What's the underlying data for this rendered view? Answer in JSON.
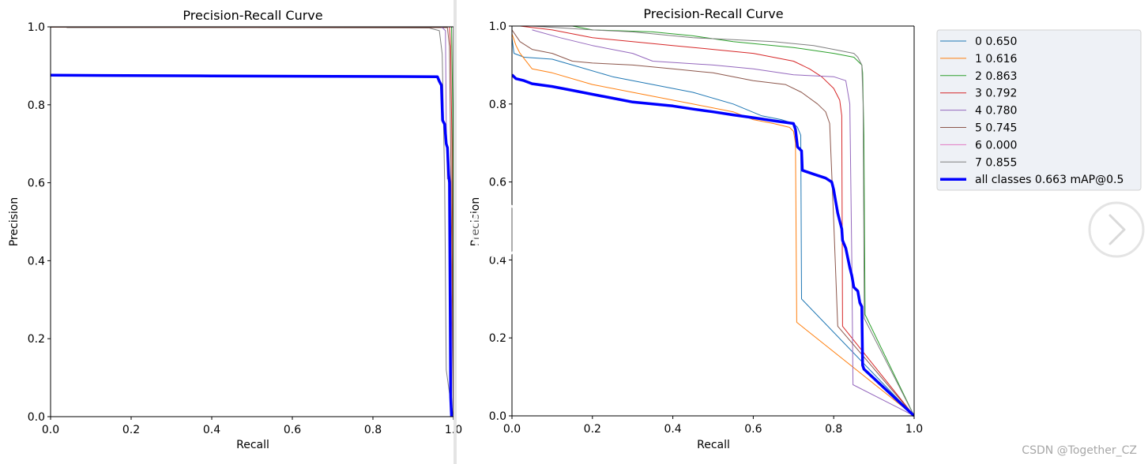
{
  "viewer": {
    "watermark": "CSDN @Together_CZ",
    "prev_label": "previous image",
    "next_label": "next image",
    "prev_icon": "chevron-left-icon",
    "next_icon": "chevron-right-icon"
  },
  "colors": {
    "c0": "#1f77b4",
    "c1": "#ff7f0e",
    "c2": "#2ca02c",
    "c3": "#d62728",
    "c4": "#9467bd",
    "c5": "#8c564b",
    "c6": "#e377c2",
    "c7": "#7f7f7f",
    "all": "#0000ff",
    "background": "#ffffff",
    "legend_bg": "#eef1f6"
  },
  "chart_data": [
    {
      "type": "line",
      "title": "Precision-Recall Curve",
      "xlabel": "Recall",
      "ylabel": "Precision",
      "xlim": [
        0,
        1
      ],
      "ylim": [
        0,
        1
      ],
      "xticks": [
        "0.0",
        "0.2",
        "0.4",
        "0.6",
        "0.8",
        "1.0"
      ],
      "yticks": [
        "0.0",
        "0.2",
        "0.4",
        "0.6",
        "0.8",
        "1.0"
      ],
      "visible_xmax": 1.01,
      "series": [
        {
          "name": "7",
          "color": "#7f7f7f",
          "width": 1,
          "points": [
            [
              0.04,
              0.998
            ],
            [
              0.5,
              0.998
            ],
            [
              0.94,
              0.997
            ],
            [
              0.965,
              0.99
            ],
            [
              0.972,
              0.93
            ],
            [
              0.978,
              0.6
            ],
            [
              0.982,
              0.12
            ],
            [
              0.99,
              0.06
            ],
            [
              1.0,
              0.0
            ]
          ]
        },
        {
          "name": "5",
          "color": "#8c564b",
          "width": 1,
          "points": [
            [
              0.0,
              0.999
            ],
            [
              0.985,
              0.998
            ],
            [
              0.99,
              0.95
            ],
            [
              0.994,
              0.6
            ],
            [
              0.998,
              0.2
            ],
            [
              1.0,
              0.0
            ]
          ]
        },
        {
          "name": "4",
          "color": "#9467bd",
          "width": 1,
          "points": [
            [
              0.0,
              1.0
            ],
            [
              0.97,
              1.0
            ],
            [
              0.98,
              0.99
            ],
            [
              0.982,
              0.75
            ],
            [
              0.985,
              0.61
            ],
            [
              0.99,
              0.61
            ],
            [
              1.0,
              0.0
            ]
          ]
        },
        {
          "name": "3",
          "color": "#d62728",
          "width": 1,
          "points": [
            [
              0.0,
              1.0
            ],
            [
              0.99,
              1.0
            ],
            [
              0.993,
              0.95
            ],
            [
              0.996,
              0.7
            ],
            [
              1.0,
              0.0
            ]
          ]
        },
        {
          "name": "2",
          "color": "#2ca02c",
          "width": 1,
          "points": [
            [
              0.0,
              1.0
            ],
            [
              0.995,
              1.0
            ],
            [
              0.998,
              0.8
            ],
            [
              1.0,
              0.0
            ]
          ]
        },
        {
          "name": "all classes",
          "color": "#0000ff",
          "width": 3.5,
          "points": [
            [
              0.0,
              0.876
            ],
            [
              0.4,
              0.874
            ],
            [
              0.96,
              0.872
            ],
            [
              0.965,
              0.86
            ],
            [
              0.97,
              0.85
            ],
            [
              0.973,
              0.76
            ],
            [
              0.978,
              0.75
            ],
            [
              0.982,
              0.7
            ],
            [
              0.985,
              0.69
            ],
            [
              0.988,
              0.62
            ],
            [
              0.99,
              0.6
            ],
            [
              0.993,
              0.05
            ],
            [
              0.995,
              0.0
            ]
          ]
        }
      ]
    },
    {
      "type": "line",
      "title": "Precision-Recall Curve",
      "xlabel": "Recall",
      "ylabel": "Precision",
      "xlim": [
        0,
        1
      ],
      "ylim": [
        0,
        1
      ],
      "xticks": [
        "0.0",
        "0.2",
        "0.4",
        "0.6",
        "0.8",
        "1.0"
      ],
      "yticks": [
        "0.0",
        "0.2",
        "0.4",
        "0.6",
        "0.8",
        "1.0"
      ],
      "visible_xmax": 1.0,
      "series": [
        {
          "name": "0",
          "value": "0.650",
          "color": "#1f77b4",
          "width": 1,
          "points": [
            [
              0.0,
              0.97
            ],
            [
              0.005,
              0.93
            ],
            [
              0.03,
              0.92
            ],
            [
              0.1,
              0.915
            ],
            [
              0.15,
              0.9
            ],
            [
              0.25,
              0.87
            ],
            [
              0.35,
              0.85
            ],
            [
              0.45,
              0.83
            ],
            [
              0.55,
              0.8
            ],
            [
              0.62,
              0.77
            ],
            [
              0.67,
              0.76
            ],
            [
              0.7,
              0.75
            ],
            [
              0.71,
              0.74
            ],
            [
              0.718,
              0.72
            ],
            [
              0.72,
              0.3
            ],
            [
              1.0,
              0.0
            ]
          ]
        },
        {
          "name": "1",
          "value": "0.616",
          "color": "#ff7f0e",
          "width": 1,
          "points": [
            [
              0.0,
              0.98
            ],
            [
              0.01,
              0.95
            ],
            [
              0.02,
              0.93
            ],
            [
              0.05,
              0.89
            ],
            [
              0.1,
              0.88
            ],
            [
              0.2,
              0.85
            ],
            [
              0.3,
              0.83
            ],
            [
              0.45,
              0.8
            ],
            [
              0.55,
              0.78
            ],
            [
              0.6,
              0.76
            ],
            [
              0.65,
              0.75
            ],
            [
              0.69,
              0.74
            ],
            [
              0.7,
              0.73
            ],
            [
              0.705,
              0.7
            ],
            [
              0.708,
              0.24
            ],
            [
              1.0,
              0.0
            ]
          ]
        },
        {
          "name": "2",
          "value": "0.863",
          "color": "#2ca02c",
          "width": 1,
          "points": [
            [
              0.01,
              1.0
            ],
            [
              0.15,
              1.0
            ],
            [
              0.2,
              0.99
            ],
            [
              0.35,
              0.985
            ],
            [
              0.45,
              0.975
            ],
            [
              0.55,
              0.96
            ],
            [
              0.65,
              0.95
            ],
            [
              0.7,
              0.945
            ],
            [
              0.8,
              0.93
            ],
            [
              0.85,
              0.92
            ],
            [
              0.87,
              0.9
            ],
            [
              0.872,
              0.88
            ],
            [
              0.875,
              0.72
            ],
            [
              0.878,
              0.26
            ],
            [
              1.0,
              0.0
            ]
          ]
        },
        {
          "name": "3",
          "value": "0.792",
          "color": "#d62728",
          "width": 1,
          "points": [
            [
              0.02,
              1.0
            ],
            [
              0.1,
              0.99
            ],
            [
              0.2,
              0.97
            ],
            [
              0.3,
              0.96
            ],
            [
              0.4,
              0.95
            ],
            [
              0.5,
              0.94
            ],
            [
              0.6,
              0.93
            ],
            [
              0.7,
              0.91
            ],
            [
              0.74,
              0.89
            ],
            [
              0.77,
              0.87
            ],
            [
              0.8,
              0.84
            ],
            [
              0.815,
              0.81
            ],
            [
              0.82,
              0.77
            ],
            [
              0.822,
              0.23
            ],
            [
              1.0,
              0.0
            ]
          ]
        },
        {
          "name": "4",
          "value": "0.780",
          "color": "#9467bd",
          "width": 1,
          "points": [
            [
              0.05,
              0.99
            ],
            [
              0.12,
              0.97
            ],
            [
              0.2,
              0.95
            ],
            [
              0.3,
              0.93
            ],
            [
              0.35,
              0.91
            ],
            [
              0.5,
              0.9
            ],
            [
              0.6,
              0.89
            ],
            [
              0.7,
              0.875
            ],
            [
              0.8,
              0.87
            ],
            [
              0.83,
              0.86
            ],
            [
              0.84,
              0.8
            ],
            [
              0.845,
              0.4
            ],
            [
              0.848,
              0.08
            ],
            [
              1.0,
              0.0
            ]
          ]
        },
        {
          "name": "5",
          "value": "0.745",
          "color": "#8c564b",
          "width": 1,
          "points": [
            [
              0.0,
              0.99
            ],
            [
              0.02,
              0.96
            ],
            [
              0.05,
              0.94
            ],
            [
              0.1,
              0.93
            ],
            [
              0.15,
              0.91
            ],
            [
              0.2,
              0.905
            ],
            [
              0.3,
              0.9
            ],
            [
              0.4,
              0.89
            ],
            [
              0.5,
              0.88
            ],
            [
              0.6,
              0.86
            ],
            [
              0.68,
              0.85
            ],
            [
              0.72,
              0.83
            ],
            [
              0.76,
              0.8
            ],
            [
              0.78,
              0.78
            ],
            [
              0.79,
              0.75
            ],
            [
              0.8,
              0.5
            ],
            [
              0.81,
              0.23
            ],
            [
              1.0,
              0.0
            ]
          ]
        },
        {
          "name": "6",
          "value": "0.000",
          "color": "#e377c2",
          "width": 1,
          "points": []
        },
        {
          "name": "7",
          "value": "0.855",
          "color": "#7f7f7f",
          "width": 1,
          "points": [
            [
              0.05,
              1.0
            ],
            [
              0.2,
              0.99
            ],
            [
              0.3,
              0.985
            ],
            [
              0.45,
              0.97
            ],
            [
              0.55,
              0.965
            ],
            [
              0.65,
              0.96
            ],
            [
              0.75,
              0.95
            ],
            [
              0.8,
              0.94
            ],
            [
              0.85,
              0.93
            ],
            [
              0.86,
              0.92
            ],
            [
              0.87,
              0.9
            ],
            [
              0.873,
              0.8
            ],
            [
              0.876,
              0.25
            ],
            [
              1.0,
              0.0
            ]
          ]
        },
        {
          "name": "all classes",
          "value": "0.663 mAP@0.5",
          "color": "#0000ff",
          "width": 3.5,
          "points": [
            [
              0.0,
              0.875
            ],
            [
              0.01,
              0.865
            ],
            [
              0.03,
              0.86
            ],
            [
              0.05,
              0.852
            ],
            [
              0.1,
              0.845
            ],
            [
              0.15,
              0.835
            ],
            [
              0.2,
              0.825
            ],
            [
              0.25,
              0.815
            ],
            [
              0.3,
              0.805
            ],
            [
              0.35,
              0.8
            ],
            [
              0.4,
              0.795
            ],
            [
              0.45,
              0.787
            ],
            [
              0.5,
              0.78
            ],
            [
              0.55,
              0.772
            ],
            [
              0.6,
              0.765
            ],
            [
              0.65,
              0.757
            ],
            [
              0.7,
              0.75
            ],
            [
              0.705,
              0.735
            ],
            [
              0.71,
              0.69
            ],
            [
              0.72,
              0.68
            ],
            [
              0.722,
              0.63
            ],
            [
              0.75,
              0.62
            ],
            [
              0.78,
              0.61
            ],
            [
              0.795,
              0.6
            ],
            [
              0.8,
              0.58
            ],
            [
              0.805,
              0.55
            ],
            [
              0.81,
              0.52
            ],
            [
              0.815,
              0.5
            ],
            [
              0.82,
              0.48
            ],
            [
              0.822,
              0.45
            ],
            [
              0.83,
              0.43
            ],
            [
              0.84,
              0.38
            ],
            [
              0.845,
              0.36
            ],
            [
              0.85,
              0.33
            ],
            [
              0.86,
              0.32
            ],
            [
              0.865,
              0.29
            ],
            [
              0.87,
              0.28
            ],
            [
              0.872,
              0.13
            ],
            [
              0.875,
              0.12
            ],
            [
              1.0,
              0.0
            ]
          ]
        }
      ],
      "legend_position": "outside-upper-right"
    }
  ]
}
